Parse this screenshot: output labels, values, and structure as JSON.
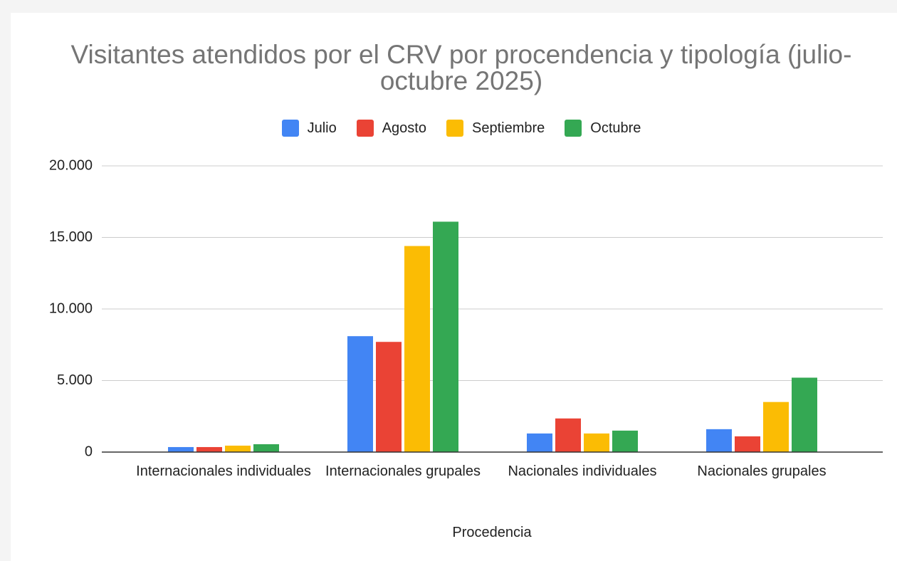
{
  "chart_data": {
    "type": "bar",
    "title": "Visitantes atendidos por el CRV por procendencia y tipología (julio-octubre 2025)",
    "x_label": "Procedencia",
    "categories": [
      "Internacionales individuales",
      "Internacionales grupales",
      "Nacionales individuales",
      "Nacionales grupales"
    ],
    "series": [
      {
        "name": "Julio",
        "color": "#4285f4",
        "values": [
          350,
          8100,
          1300,
          1600
        ]
      },
      {
        "name": "Agosto",
        "color": "#ea4335",
        "values": [
          350,
          7700,
          2350,
          1100
        ]
      },
      {
        "name": "Septiembre",
        "color": "#fbbc04",
        "values": [
          450,
          14400,
          1300,
          3500
        ]
      },
      {
        "name": "Octubre",
        "color": "#34a853",
        "values": [
          550,
          16100,
          1500,
          5200
        ]
      }
    ],
    "ylim": [
      0,
      20000
    ],
    "yticks": [
      0,
      {
        "value": 5000,
        "label": "5.000"
      },
      {
        "value": 10000,
        "label": "10.000"
      },
      {
        "value": 15000,
        "label": "15.000"
      },
      {
        "value": 20000,
        "label": "20.000"
      }
    ],
    "grid": true,
    "legend": "top"
  }
}
